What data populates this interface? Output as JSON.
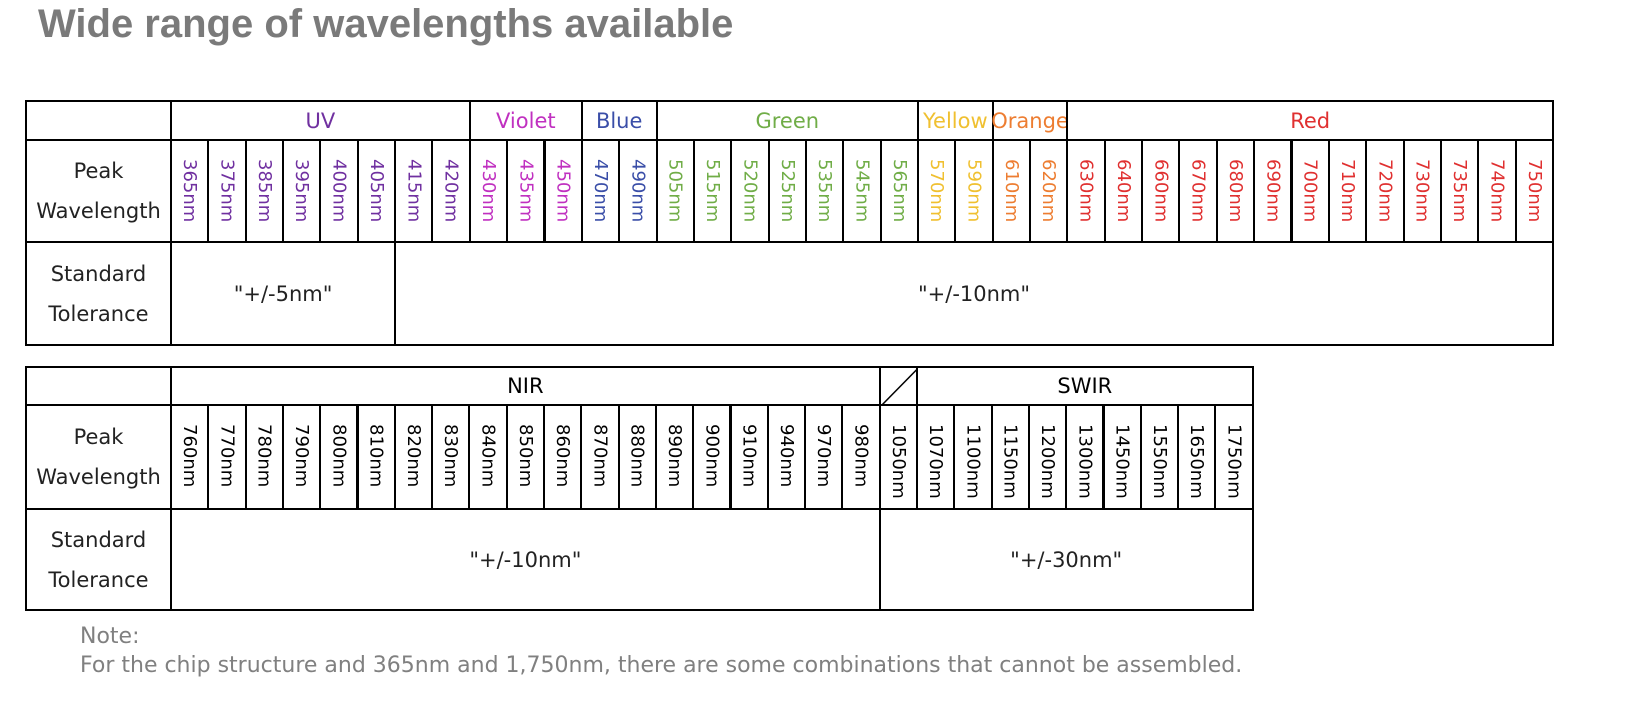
{
  "title": "Wide range of wavelengths available",
  "tables": [
    {
      "groups": [
        {
          "name": "UV",
          "color": "#7030a0",
          "wavelengths": [
            "365nm",
            "375nm",
            "385nm",
            "395nm",
            "400nm",
            "405nm",
            "415nm",
            "420nm"
          ]
        },
        {
          "name": "Violet",
          "color": "#c030c0",
          "wavelengths": [
            "430nm",
            "435nm",
            "450nm"
          ]
        },
        {
          "name": "Blue",
          "color": "#3a4ea8",
          "wavelengths": [
            "470nm",
            "490nm"
          ]
        },
        {
          "name": "Green",
          "color": "#70ad47",
          "wavelengths": [
            "505nm",
            "515nm",
            "520nm",
            "525nm",
            "535nm",
            "545nm",
            "565nm"
          ]
        },
        {
          "name": "Yellow",
          "color": "#f0c030",
          "wavelengths": [
            "570nm",
            "590nm"
          ]
        },
        {
          "name": "Orange",
          "color": "#ed7d31",
          "wavelengths": [
            "610nm",
            "620nm"
          ]
        },
        {
          "name": "Red",
          "color": "#e03030",
          "wavelengths": [
            "630nm",
            "640nm",
            "660nm",
            "670nm",
            "680nm",
            "690nm",
            "700nm",
            "710nm",
            "720nm",
            "730nm",
            "735nm",
            "740nm",
            "750nm"
          ]
        }
      ],
      "row_labels": [
        "Peak Wavelength",
        "Standard Tolerance"
      ],
      "tolerances": [
        "\"+/-5nm\"",
        "\"+/-10nm\""
      ]
    },
    {
      "groups": [
        {
          "name": "NIR",
          "color": "#000000",
          "wavelengths": [
            "760nm",
            "770nm",
            "780nm",
            "790nm",
            "800nm",
            "810nm",
            "820nm",
            "830nm",
            "840nm",
            "850nm",
            "860nm",
            "870nm",
            "880nm",
            "890nm",
            "900nm",
            "910nm",
            "940nm",
            "970nm",
            "980nm"
          ]
        },
        {
          "name": null,
          "color": "#000000",
          "wavelengths": [
            "1050nm"
          ]
        },
        {
          "name": "SWIR",
          "color": "#000000",
          "wavelengths": [
            "1070nm",
            "1100nm",
            "1150nm",
            "1200nm",
            "1300nm",
            "1450nm",
            "1550nm",
            "1650nm",
            "1750nm"
          ]
        }
      ],
      "row_labels": [
        "Peak Wavelength",
        "Standard Tolerance"
      ],
      "tolerances": [
        "\"+/-10nm\"",
        "\"+/-30nm\""
      ]
    }
  ],
  "note": {
    "heading": "Note:",
    "text": "For the chip structure and 365nm and 1,750nm, there are some combinations that cannot be assembled."
  }
}
